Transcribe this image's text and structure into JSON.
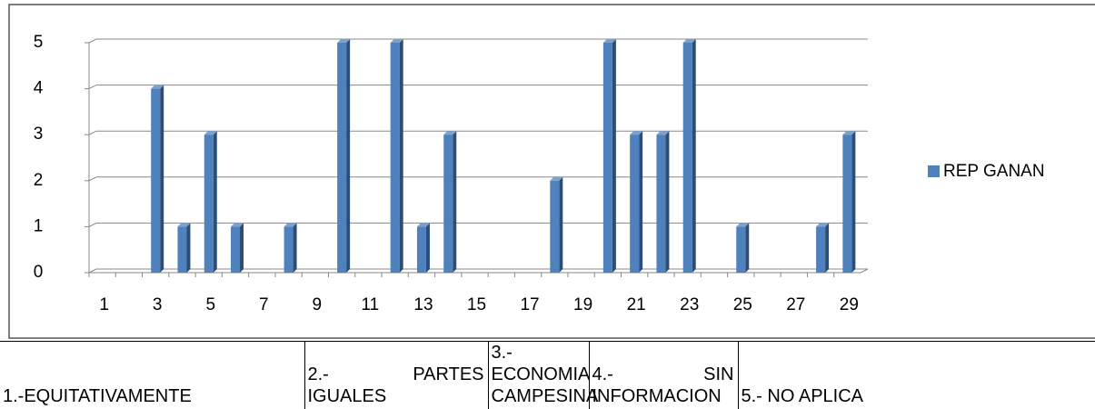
{
  "chart_data": {
    "type": "bar",
    "categories": [
      "1",
      null,
      "3",
      null,
      "5",
      null,
      "7",
      null,
      "9",
      null,
      "11",
      null,
      "13",
      null,
      "15",
      null,
      "17",
      null,
      "19",
      null,
      "21",
      null,
      "23",
      null,
      "25",
      null,
      "27",
      null,
      "29"
    ],
    "series": [
      {
        "name": "REP GANAN",
        "color": "#4f81bd",
        "values": [
          0,
          0,
          4,
          1,
          3,
          1,
          0,
          1,
          0,
          5,
          0,
          5,
          1,
          3,
          0,
          0,
          0,
          2,
          0,
          5,
          3,
          3,
          5,
          0,
          1,
          0,
          0,
          1,
          3
        ]
      }
    ],
    "ylim": [
      0,
      5
    ],
    "yticks": [
      0,
      1,
      2,
      3,
      4,
      5
    ],
    "grid": true,
    "legend": "right"
  },
  "table": {
    "rows": [
      [
        "1.-EQUITATIVAMENTE",
        "2.- PARTES IGUALES",
        "3.- ECONOMIA CAMPESINA",
        "4.- SIN INFORMACION",
        "5.- NO APLICA"
      ]
    ]
  }
}
